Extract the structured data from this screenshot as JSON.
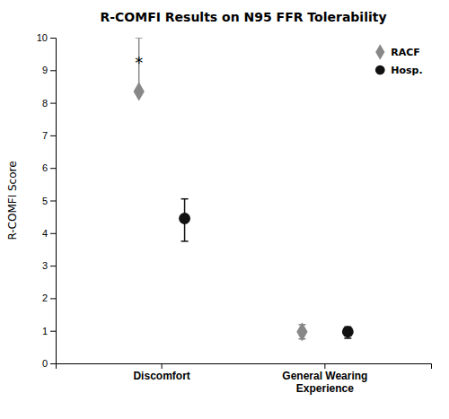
{
  "chart_data": {
    "type": "scatter",
    "title": "R-COMFI Results on N95 FFR Tolerability",
    "ylabel": "R-COMFI Score",
    "categories": [
      "Discomfort",
      "General Wearing\nExperience"
    ],
    "series": [
      {
        "name": "RACF",
        "color": "#888888",
        "marker": "diamond",
        "values": [
          8.35,
          0.97
        ],
        "yerr_low": [
          0.0,
          0.22
        ],
        "yerr_high": [
          1.65,
          0.22
        ]
      },
      {
        "name": "Hosp.",
        "color": "#111111",
        "marker": "circle",
        "values": [
          4.45,
          0.97
        ],
        "yerr_low": [
          0.7,
          0.2
        ],
        "yerr_high": [
          0.6,
          0.15
        ]
      }
    ],
    "annotations": [
      {
        "text": "*",
        "x": "Discomfort",
        "series": "RACF",
        "y": 9.05
      }
    ],
    "ylim": [
      0,
      10
    ],
    "yticks": [
      0,
      1,
      2,
      3,
      4,
      5,
      6,
      7,
      8,
      9,
      10
    ],
    "legend": "upper right",
    "grid": false
  }
}
